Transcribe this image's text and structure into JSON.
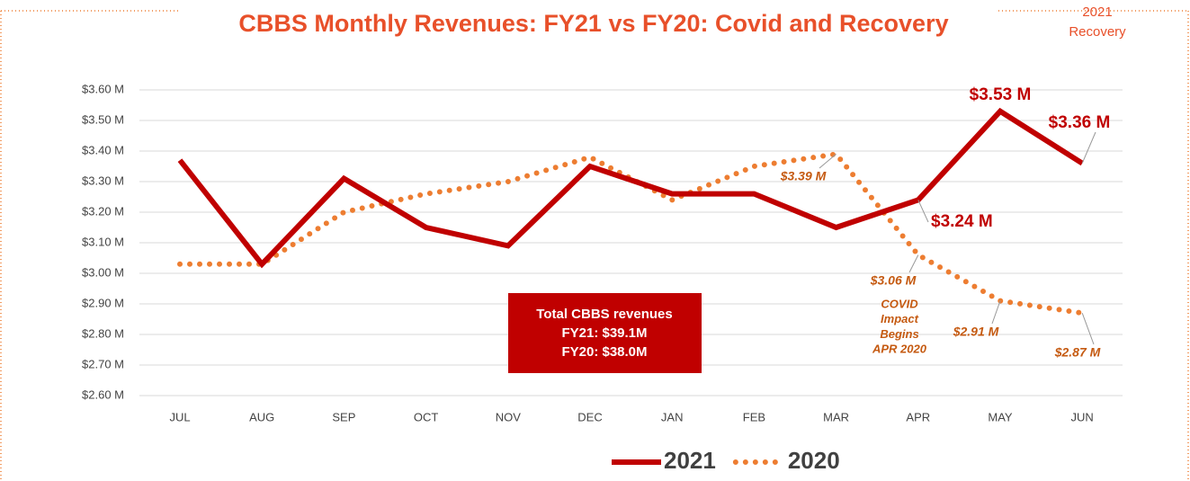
{
  "chart_data": {
    "type": "line",
    "title": "CBBS Monthly Revenues: FY21 vs FY20: Covid and Recovery",
    "subtitle": [
      "2021",
      "Recovery"
    ],
    "categories": [
      "JUL",
      "AUG",
      "SEP",
      "OCT",
      "NOV",
      "DEC",
      "JAN",
      "FEB",
      "MAR",
      "APR",
      "MAY",
      "JUN"
    ],
    "series": [
      {
        "name": "2021",
        "color": "#c00000",
        "style": "solid",
        "values": [
          3.37,
          3.03,
          3.31,
          3.15,
          3.09,
          3.35,
          3.26,
          3.26,
          3.15,
          3.24,
          3.53,
          3.36
        ],
        "value_labels": [
          null,
          null,
          null,
          null,
          null,
          null,
          null,
          null,
          null,
          "$3.24 M",
          "$3.53 M",
          "$3.36 M"
        ]
      },
      {
        "name": "2020",
        "color": "#ed7d31",
        "style": "dotted",
        "values": [
          3.03,
          3.03,
          3.2,
          3.26,
          3.3,
          3.38,
          3.24,
          3.35,
          3.39,
          3.06,
          2.91,
          2.87
        ],
        "value_labels": [
          null,
          null,
          null,
          null,
          null,
          null,
          null,
          null,
          "$3.39 M",
          "$3.06 M",
          "$2.91 M",
          "$2.87 M"
        ]
      }
    ],
    "ylim": [
      2.6,
      3.6
    ],
    "yticks": [
      {
        "value": 2.6,
        "label": "$2.60 M"
      },
      {
        "value": 2.7,
        "label": "$2.70 M"
      },
      {
        "value": 2.8,
        "label": "$2.80 M"
      },
      {
        "value": 2.9,
        "label": "$2.90 M"
      },
      {
        "value": 3.0,
        "label": "$3.00 M"
      },
      {
        "value": 3.1,
        "label": "$3.10 M"
      },
      {
        "value": 3.2,
        "label": "$3.20 M"
      },
      {
        "value": 3.3,
        "label": "$3.30 M"
      },
      {
        "value": 3.4,
        "label": "$3.40 M"
      },
      {
        "value": 3.5,
        "label": "$3.50 M"
      },
      {
        "value": 3.6,
        "label": "$3.60 M"
      }
    ],
    "grid": true,
    "legend": "bottom",
    "annotation": [
      "COVID",
      "Impact",
      "Begins",
      "APR 2020"
    ],
    "box": [
      "Total CBBS revenues",
      "FY21: $39.1M",
      "FY20: $38.0M"
    ],
    "box_color": "#c00000"
  }
}
